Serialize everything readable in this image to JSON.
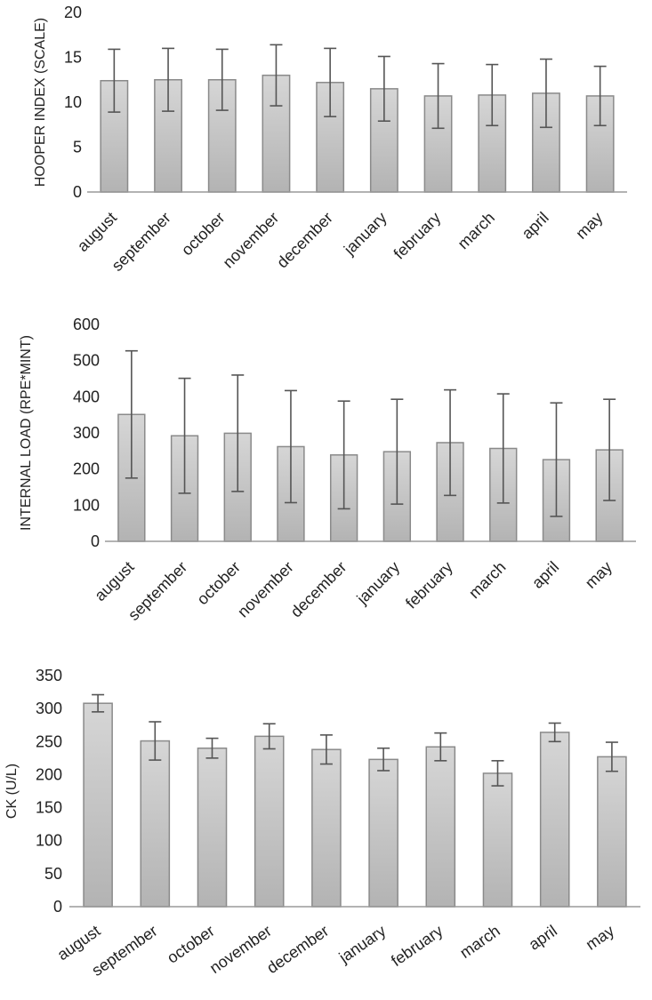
{
  "figure_colors": {
    "bar_fill_top": "#d6d6d6",
    "bar_fill_bottom": "#b3b3b3",
    "bar_stroke": "#8a8a8a",
    "error_bar": "#555555",
    "axis": "#9a9a9a"
  },
  "chart_data": [
    {
      "type": "bar",
      "title": "",
      "xlabel": "",
      "ylabel": "HOOPER INDEX (SCALE)",
      "ylim": [
        0,
        20
      ],
      "yticks": [
        0,
        5,
        10,
        15,
        20
      ],
      "categories": [
        "august",
        "september",
        "october",
        "november",
        "december",
        "january",
        "february",
        "march",
        "april",
        "may"
      ],
      "values": [
        12.4,
        12.5,
        12.5,
        13.0,
        12.2,
        11.5,
        10.7,
        10.8,
        11.0,
        10.7
      ],
      "errors": [
        3.5,
        3.5,
        3.4,
        3.4,
        3.8,
        3.6,
        3.6,
        3.4,
        3.8,
        3.3
      ]
    },
    {
      "type": "bar",
      "title": "",
      "xlabel": "",
      "ylabel": "INTERNAL LOAD (RPE*MINT)",
      "ylim": [
        0,
        600
      ],
      "yticks": [
        0,
        100,
        200,
        300,
        400,
        500,
        600
      ],
      "categories": [
        "august",
        "september",
        "october",
        "november",
        "december",
        "january",
        "february",
        "march",
        "april",
        "may"
      ],
      "values": [
        351,
        292,
        299,
        262,
        239,
        248,
        273,
        257,
        226,
        253
      ],
      "errors": [
        176,
        159,
        161,
        155,
        149,
        145,
        146,
        151,
        157,
        140
      ]
    },
    {
      "type": "bar",
      "title": "",
      "xlabel": "",
      "ylabel": "CK (U/L)",
      "ylim": [
        0,
        350
      ],
      "yticks": [
        0,
        50,
        100,
        150,
        200,
        250,
        300,
        350
      ],
      "categories": [
        "august",
        "september",
        "october",
        "november",
        "december",
        "january",
        "february",
        "march",
        "april",
        "may"
      ],
      "values": [
        308,
        251,
        240,
        258,
        238,
        223,
        242,
        202,
        264,
        227
      ],
      "errors": [
        13,
        29,
        15,
        19,
        22,
        17,
        21,
        19,
        14,
        22
      ]
    }
  ]
}
